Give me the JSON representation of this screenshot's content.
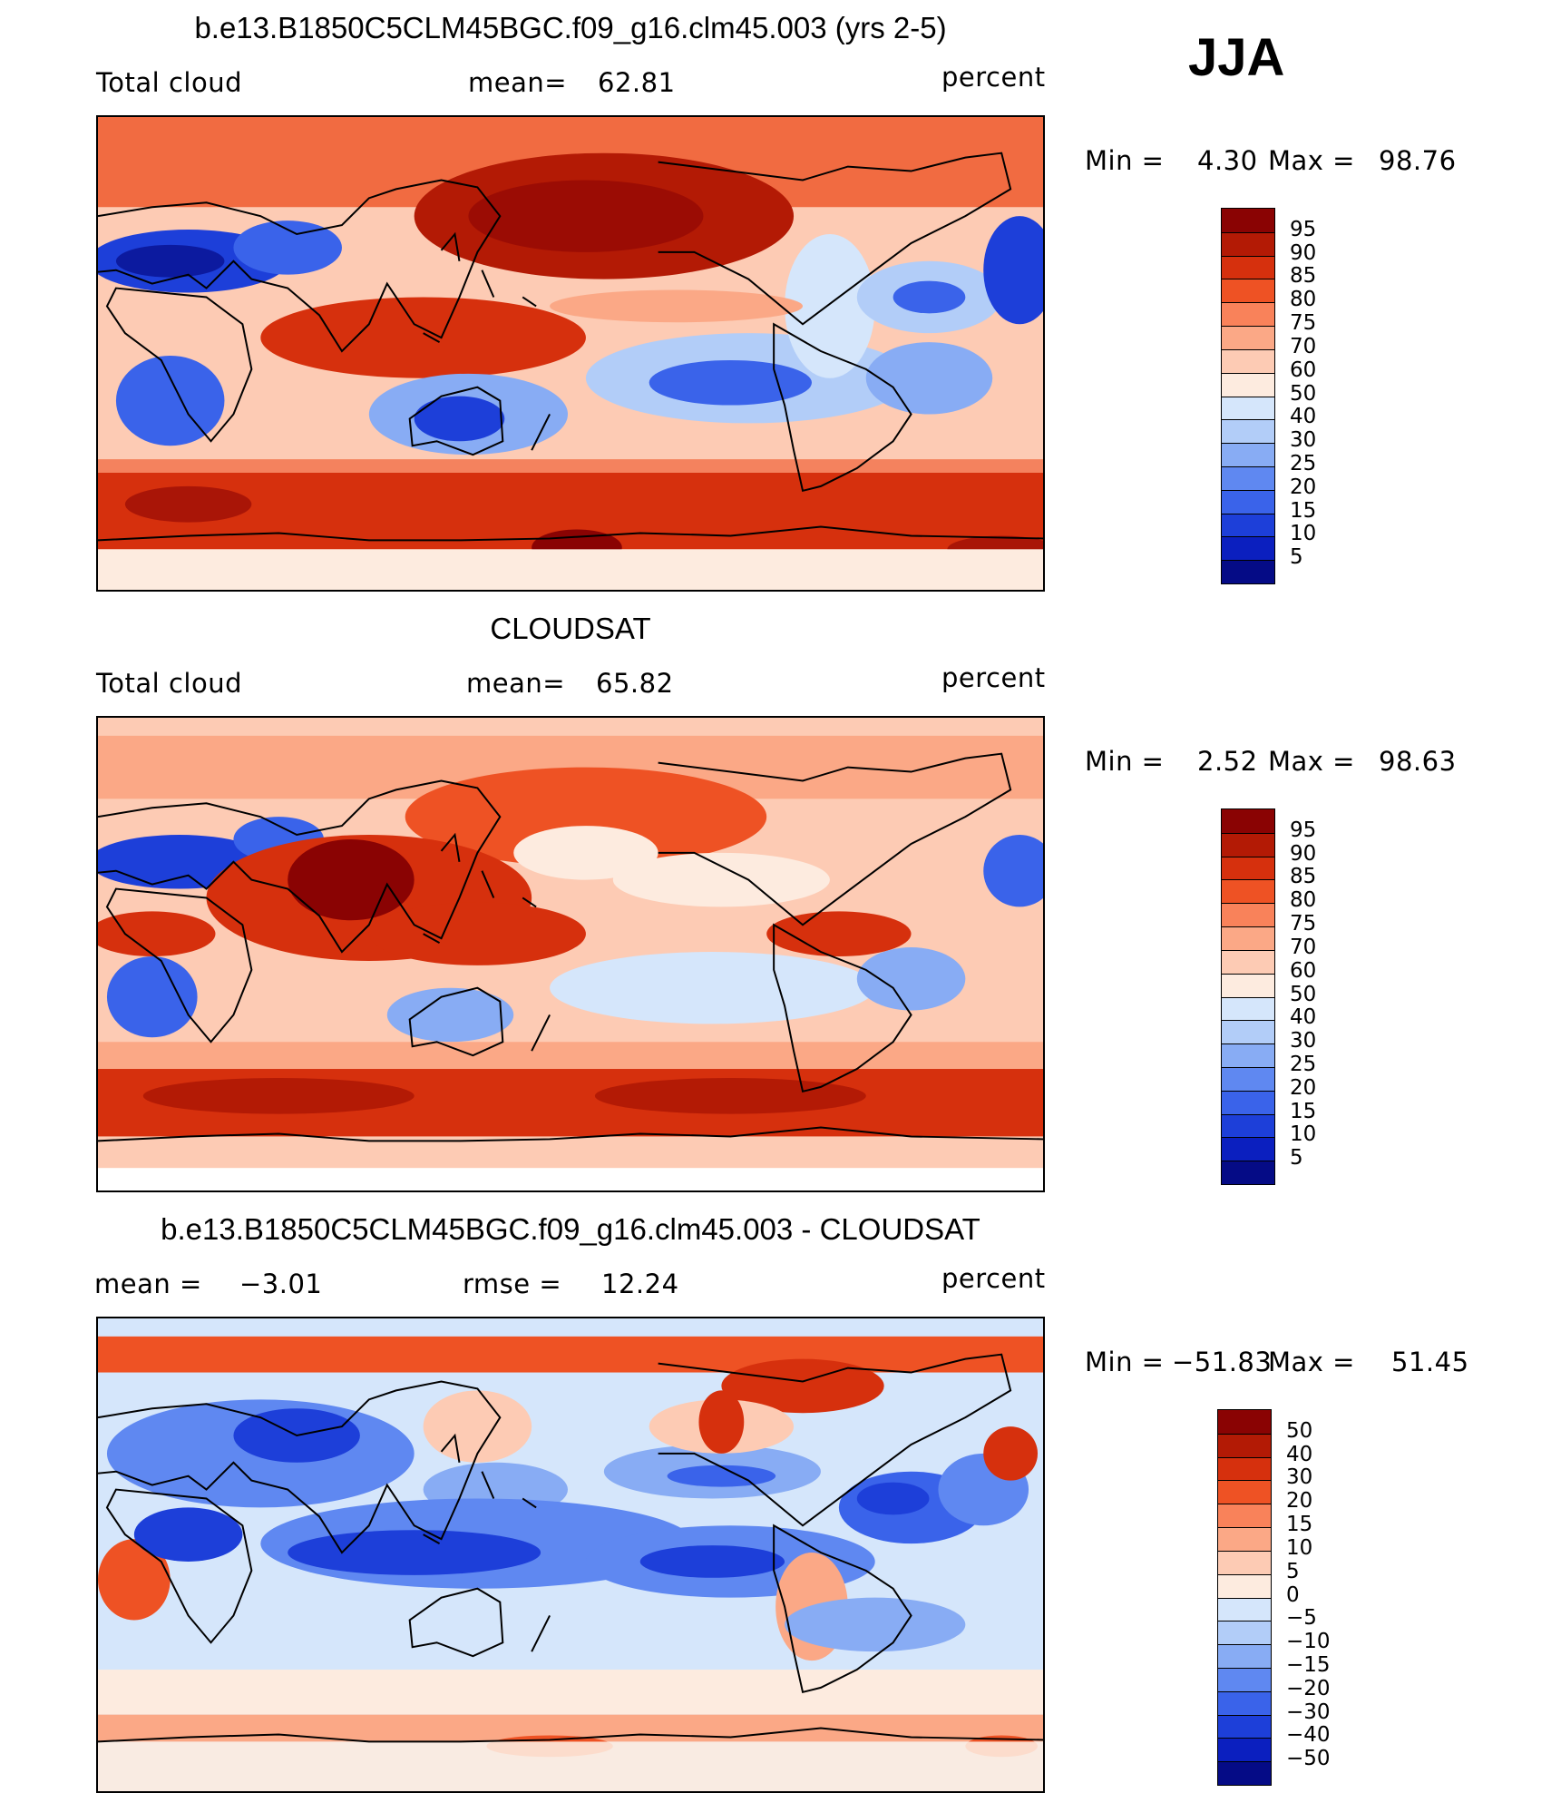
{
  "season": "JJA",
  "chart_data": [
    {
      "type": "heatmap",
      "title": "b.e13.B1850C5CLM45BGC.f09_g16.clm45.003 (yrs 2-5)",
      "left_label": "Total cloud",
      "stat_label": "mean=",
      "stat_value": "62.81",
      "units": "percent",
      "min_label": "Min  =",
      "min_value": "4.30",
      "max_label": "Max  =",
      "max_value": "98.76",
      "levels": [
        "95",
        "90",
        "85",
        "80",
        "75",
        "70",
        "60",
        "50",
        "40",
        "30",
        "25",
        "20",
        "15",
        "10",
        "5"
      ],
      "colors": [
        "#8a0303",
        "#b31a05",
        "#d6300d",
        "#ee5224",
        "#f9825a",
        "#fba886",
        "#fdcbb4",
        "#fdebdf",
        "#d5e6fb",
        "#b2cdf8",
        "#88acf4",
        "#5f88f1",
        "#3a63ea",
        "#1d3fd9",
        "#0b1fbf",
        "#050b86"
      ]
    },
    {
      "type": "heatmap",
      "title": "CLOUDSAT",
      "left_label": "Total cloud",
      "stat_label": "mean=",
      "stat_value": "65.82",
      "units": "percent",
      "min_label": "Min  =",
      "min_value": "2.52",
      "max_label": "Max  =",
      "max_value": "98.63",
      "levels": [
        "95",
        "90",
        "85",
        "80",
        "75",
        "70",
        "60",
        "50",
        "40",
        "30",
        "25",
        "20",
        "15",
        "10",
        "5"
      ],
      "colors": [
        "#8a0303",
        "#b31a05",
        "#d6300d",
        "#ee5224",
        "#f9825a",
        "#fba886",
        "#fdcbb4",
        "#fdebdf",
        "#d5e6fb",
        "#b2cdf8",
        "#88acf4",
        "#5f88f1",
        "#3a63ea",
        "#1d3fd9",
        "#0b1fbf",
        "#050b86"
      ]
    },
    {
      "type": "heatmap",
      "title": "b.e13.B1850C5CLM45BGC.f09_g16.clm45.003 - CLOUDSAT",
      "left_label": "mean  =",
      "left_value": "−3.01",
      "stat_label": "rmse  =",
      "stat_value": "12.24",
      "units": "percent",
      "min_label": "Min  =",
      "min_value": "−51.83",
      "max_label": "Max  =",
      "max_value": "51.45",
      "levels": [
        "50",
        "40",
        "30",
        "20",
        "15",
        "10",
        "5",
        "0",
        "−5",
        "−10",
        "−15",
        "−20",
        "−30",
        "−40",
        "−50"
      ],
      "colors": [
        "#8a0303",
        "#b31a05",
        "#d6300d",
        "#ee5224",
        "#f9825a",
        "#fba886",
        "#fdcbb4",
        "#fdebdf",
        "#d5e6fb",
        "#b2cdf8",
        "#88acf4",
        "#5f88f1",
        "#3a63ea",
        "#1d3fd9",
        "#0b1fbf",
        "#050b86"
      ]
    }
  ]
}
